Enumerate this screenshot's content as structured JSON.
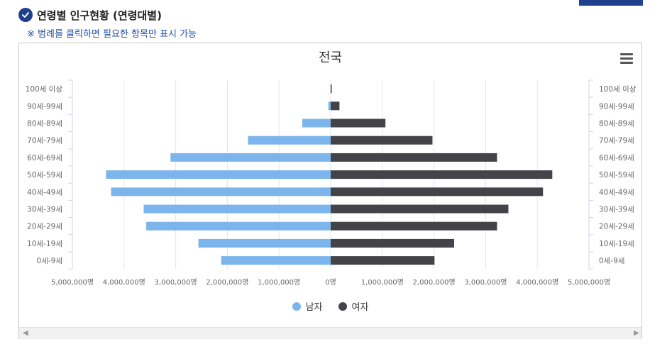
{
  "header": {
    "title": "연령별 인구현황 (연령대별)",
    "notice": "※ 범례를 클릭하면 필요한 항목만 표시 가능"
  },
  "colors": {
    "male": "#7cb5ec",
    "female": "#434348",
    "accent": "#1f3f8f"
  },
  "icons": {
    "header": "check-circle-icon",
    "menu": "hamburger-menu-icon",
    "scroll_left": "arrow-left-icon",
    "scroll_right": "arrow-right-icon"
  },
  "chart_data": {
    "type": "bar",
    "orientation": "horizontal",
    "title": "전국",
    "categories": [
      "100세 이상",
      "90세-99세",
      "80세-89세",
      "70세-79세",
      "60세-69세",
      "50세-59세",
      "40세-49세",
      "30세-39세",
      "20세-29세",
      "10세-19세",
      "0세-9세"
    ],
    "series": [
      {
        "name": "남자",
        "values": [
          4000,
          45000,
          550000,
          1600000,
          3100000,
          4350000,
          4250000,
          3620000,
          3570000,
          2560000,
          2120000
        ]
      },
      {
        "name": "여자",
        "values": [
          20000,
          170000,
          1060000,
          1970000,
          3220000,
          4290000,
          4110000,
          3440000,
          3220000,
          2390000,
          2010000
        ]
      }
    ],
    "xlim": [
      -5000000,
      5000000
    ],
    "xticks": [
      -5000000,
      -4000000,
      -3000000,
      -2000000,
      -1000000,
      0,
      1000000,
      2000000,
      3000000,
      4000000,
      5000000
    ],
    "xtick_labels": [
      "5,000,000명",
      "4,000,000명",
      "3,000,000명",
      "2,000,000명",
      "1,000,000명",
      "0명",
      "1,000,000명",
      "2,000,000명",
      "3,000,000명",
      "4,000,000명",
      "5,000,000명"
    ],
    "legend": {
      "position": "bottom-center",
      "items": [
        "남자",
        "여자"
      ]
    },
    "grid": true
  }
}
